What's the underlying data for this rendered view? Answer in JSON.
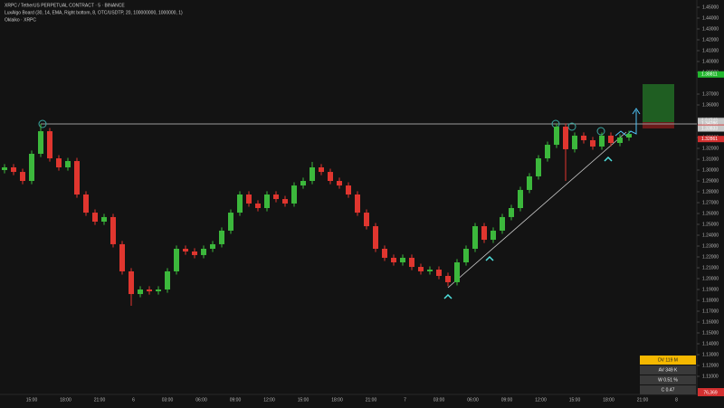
{
  "chart_data": {
    "type": "candlestick",
    "header": [
      "XRPC / TetherUS PERPETUAL CONTRACT · 5 · BINANCE",
      "LuxAlgo Board (30, 14, EMA, Right bottom, 8, OTC/USDTP, 20, 100000000, 1000000, 1)",
      "Oklaiko · XRPC"
    ],
    "up_color": "#3cb83c",
    "down_color": "#e0362f",
    "open": [
      1.3,
      1.3025,
      1.2983,
      1.29,
      1.315,
      1.3358,
      1.3108,
      1.3025,
      1.3083,
      1.2775,
      1.2608,
      1.2525,
      1.2567,
      1.2317,
      1.2067,
      1.1858,
      1.19,
      1.1883,
      1.19,
      1.2067,
      1.2275,
      1.225,
      1.2217,
      1.2275,
      1.2317,
      1.2442,
      1.2608,
      1.2775,
      1.2692,
      1.265,
      1.2775,
      1.2733,
      1.2692,
      1.2858,
      1.29,
      1.3025,
      1.2983,
      1.29,
      1.2858,
      1.2775,
      1.2608,
      1.2483,
      1.2275,
      1.2192,
      1.215,
      1.2192,
      1.2108,
      1.2067,
      1.2083,
      1.2025,
      1.1967,
      1.215,
      1.2275,
      1.2483,
      1.2358,
      1.2442,
      1.2567,
      1.265,
      1.2817,
      1.2942,
      1.3108,
      1.3233,
      1.34,
      1.3192,
      1.3317,
      1.3275,
      1.3217,
      1.3317,
      1.325,
      1.33
    ],
    "high": [
      1.3055,
      1.3055,
      1.3013,
      1.318,
      1.3425,
      1.3388,
      1.3138,
      1.3113,
      1.3113,
      1.2805,
      1.2638,
      1.2597,
      1.2597,
      1.2347,
      1.2097,
      1.193,
      1.193,
      1.193,
      1.2097,
      1.2305,
      1.2305,
      1.228,
      1.2305,
      1.2347,
      1.2472,
      1.2638,
      1.2805,
      1.2805,
      1.2722,
      1.2805,
      1.2805,
      1.2763,
      1.2888,
      1.293,
      1.3075,
      1.3055,
      1.3013,
      1.293,
      1.2888,
      1.2805,
      1.2638,
      1.2513,
      1.2305,
      1.2222,
      1.2222,
      1.2222,
      1.2138,
      1.2113,
      1.2113,
      1.2055,
      1.218,
      1.2305,
      1.2513,
      1.2513,
      1.2472,
      1.2597,
      1.268,
      1.2847,
      1.2972,
      1.3138,
      1.3263,
      1.343,
      1.343,
      1.3347,
      1.3347,
      1.3305,
      1.3347,
      1.3347,
      1.333,
      1.3363
    ],
    "low": [
      1.297,
      1.2953,
      1.287,
      1.287,
      1.312,
      1.3078,
      1.2995,
      1.2995,
      1.2745,
      1.2578,
      1.2495,
      1.2495,
      1.2287,
      1.2037,
      1.175,
      1.1828,
      1.1853,
      1.1853,
      1.187,
      1.2037,
      1.222,
      1.2187,
      1.2187,
      1.2245,
      1.2287,
      1.2412,
      1.2578,
      1.2662,
      1.262,
      1.262,
      1.2703,
      1.2662,
      1.2662,
      1.2828,
      1.287,
      1.2953,
      1.287,
      1.2828,
      1.2745,
      1.2578,
      1.2453,
      1.2245,
      1.2162,
      1.212,
      1.212,
      1.2078,
      1.2037,
      1.2037,
      1.1995,
      1.193,
      1.1937,
      1.212,
      1.2245,
      1.2328,
      1.2328,
      1.2412,
      1.2537,
      1.262,
      1.2787,
      1.2912,
      1.3078,
      1.3203,
      1.29,
      1.3162,
      1.3245,
      1.3187,
      1.3187,
      1.322,
      1.322,
      1.327
    ],
    "close": [
      1.3025,
      1.2983,
      1.29,
      1.315,
      1.3358,
      1.3108,
      1.3025,
      1.3083,
      1.2775,
      1.2608,
      1.2525,
      1.2567,
      1.2317,
      1.2067,
      1.1858,
      1.19,
      1.1883,
      1.19,
      1.2067,
      1.2275,
      1.225,
      1.2217,
      1.2275,
      1.2317,
      1.2442,
      1.2608,
      1.2775,
      1.2692,
      1.265,
      1.2775,
      1.2733,
      1.2692,
      1.2858,
      1.29,
      1.3025,
      1.2983,
      1.29,
      1.2858,
      1.2775,
      1.2608,
      1.2483,
      1.2275,
      1.2192,
      1.215,
      1.2192,
      1.2108,
      1.2067,
      1.2083,
      1.2025,
      1.1967,
      1.215,
      1.2275,
      1.2483,
      1.2358,
      1.2442,
      1.2567,
      1.265,
      1.2817,
      1.2942,
      1.3108,
      1.3233,
      1.34,
      1.3192,
      1.3317,
      1.3275,
      1.3217,
      1.3317,
      1.325,
      1.33,
      1.3333
    ],
    "x_labels": [
      "15:00",
      "18:00",
      "21:00",
      "6",
      "03:00",
      "06:00",
      "09:00",
      "12:00",
      "15:00",
      "18:00",
      "21:00",
      "7",
      "03:00",
      "06:00",
      "09:00",
      "12:00",
      "15:00",
      "18:00",
      "21:00",
      "8"
    ],
    "ylim": [
      1.11,
      1.45
    ],
    "yticks": [
      {
        "value": 1.11,
        "label": "1.11000"
      },
      {
        "value": 1.12,
        "label": "1.12000"
      },
      {
        "value": 1.13,
        "label": "1.13000"
      },
      {
        "value": 1.14,
        "label": "1.14000"
      },
      {
        "value": 1.15,
        "label": "1.15000"
      },
      {
        "value": 1.16,
        "label": "1.16000"
      },
      {
        "value": 1.17,
        "label": "1.17000"
      },
      {
        "value": 1.18,
        "label": "1.18000"
      },
      {
        "value": 1.19,
        "label": "1.19000"
      },
      {
        "value": 1.2,
        "label": "1.20000"
      },
      {
        "value": 1.21,
        "label": "1.21000"
      },
      {
        "value": 1.22,
        "label": "1.22000"
      },
      {
        "value": 1.23,
        "label": "1.23000"
      },
      {
        "value": 1.24,
        "label": "1.24000"
      },
      {
        "value": 1.25,
        "label": "1.25000"
      },
      {
        "value": 1.26,
        "label": "1.26000"
      },
      {
        "value": 1.27,
        "label": "1.27000"
      },
      {
        "value": 1.28,
        "label": "1.28000"
      },
      {
        "value": 1.29,
        "label": "1.29000"
      },
      {
        "value": 1.3,
        "label": "1.30000"
      },
      {
        "value": 1.31,
        "label": "1.31000"
      },
      {
        "value": 1.32,
        "label": "1.32000"
      },
      {
        "value": 1.33,
        "label": "1.33000"
      },
      {
        "value": 1.36,
        "label": "1.36000"
      },
      {
        "value": 1.37,
        "label": "1.37000"
      },
      {
        "value": 1.39,
        "label": "1.39000"
      },
      {
        "value": 1.4,
        "label": "1.40000"
      },
      {
        "value": 1.41,
        "label": "1.41000"
      },
      {
        "value": 1.42,
        "label": "1.42000"
      },
      {
        "value": 1.43,
        "label": "1.43000"
      },
      {
        "value": 1.44,
        "label": "1.44000"
      },
      {
        "value": 1.45,
        "label": "1.45000"
      }
    ],
    "price_labels": [
      {
        "value": 1.38811,
        "color": "#22b82e"
      },
      {
        "value": 1.34549,
        "color": "#9e9e9e"
      },
      {
        "value": 1.34438,
        "color": "#c8c8c8"
      },
      {
        "value": 1.34286,
        "color": "#c8c8c8"
      },
      {
        "value": 1.33904,
        "color": "#d33030"
      },
      {
        "value": 1.33833,
        "color": "#c8c8c8"
      },
      {
        "value": 1.32861,
        "color": "#d33030"
      }
    ],
    "stats": [
      "DV 119 M",
      "AV 349 K",
      "W 0.51 %",
      "C 0.47"
    ],
    "corner_label": "76,369"
  }
}
